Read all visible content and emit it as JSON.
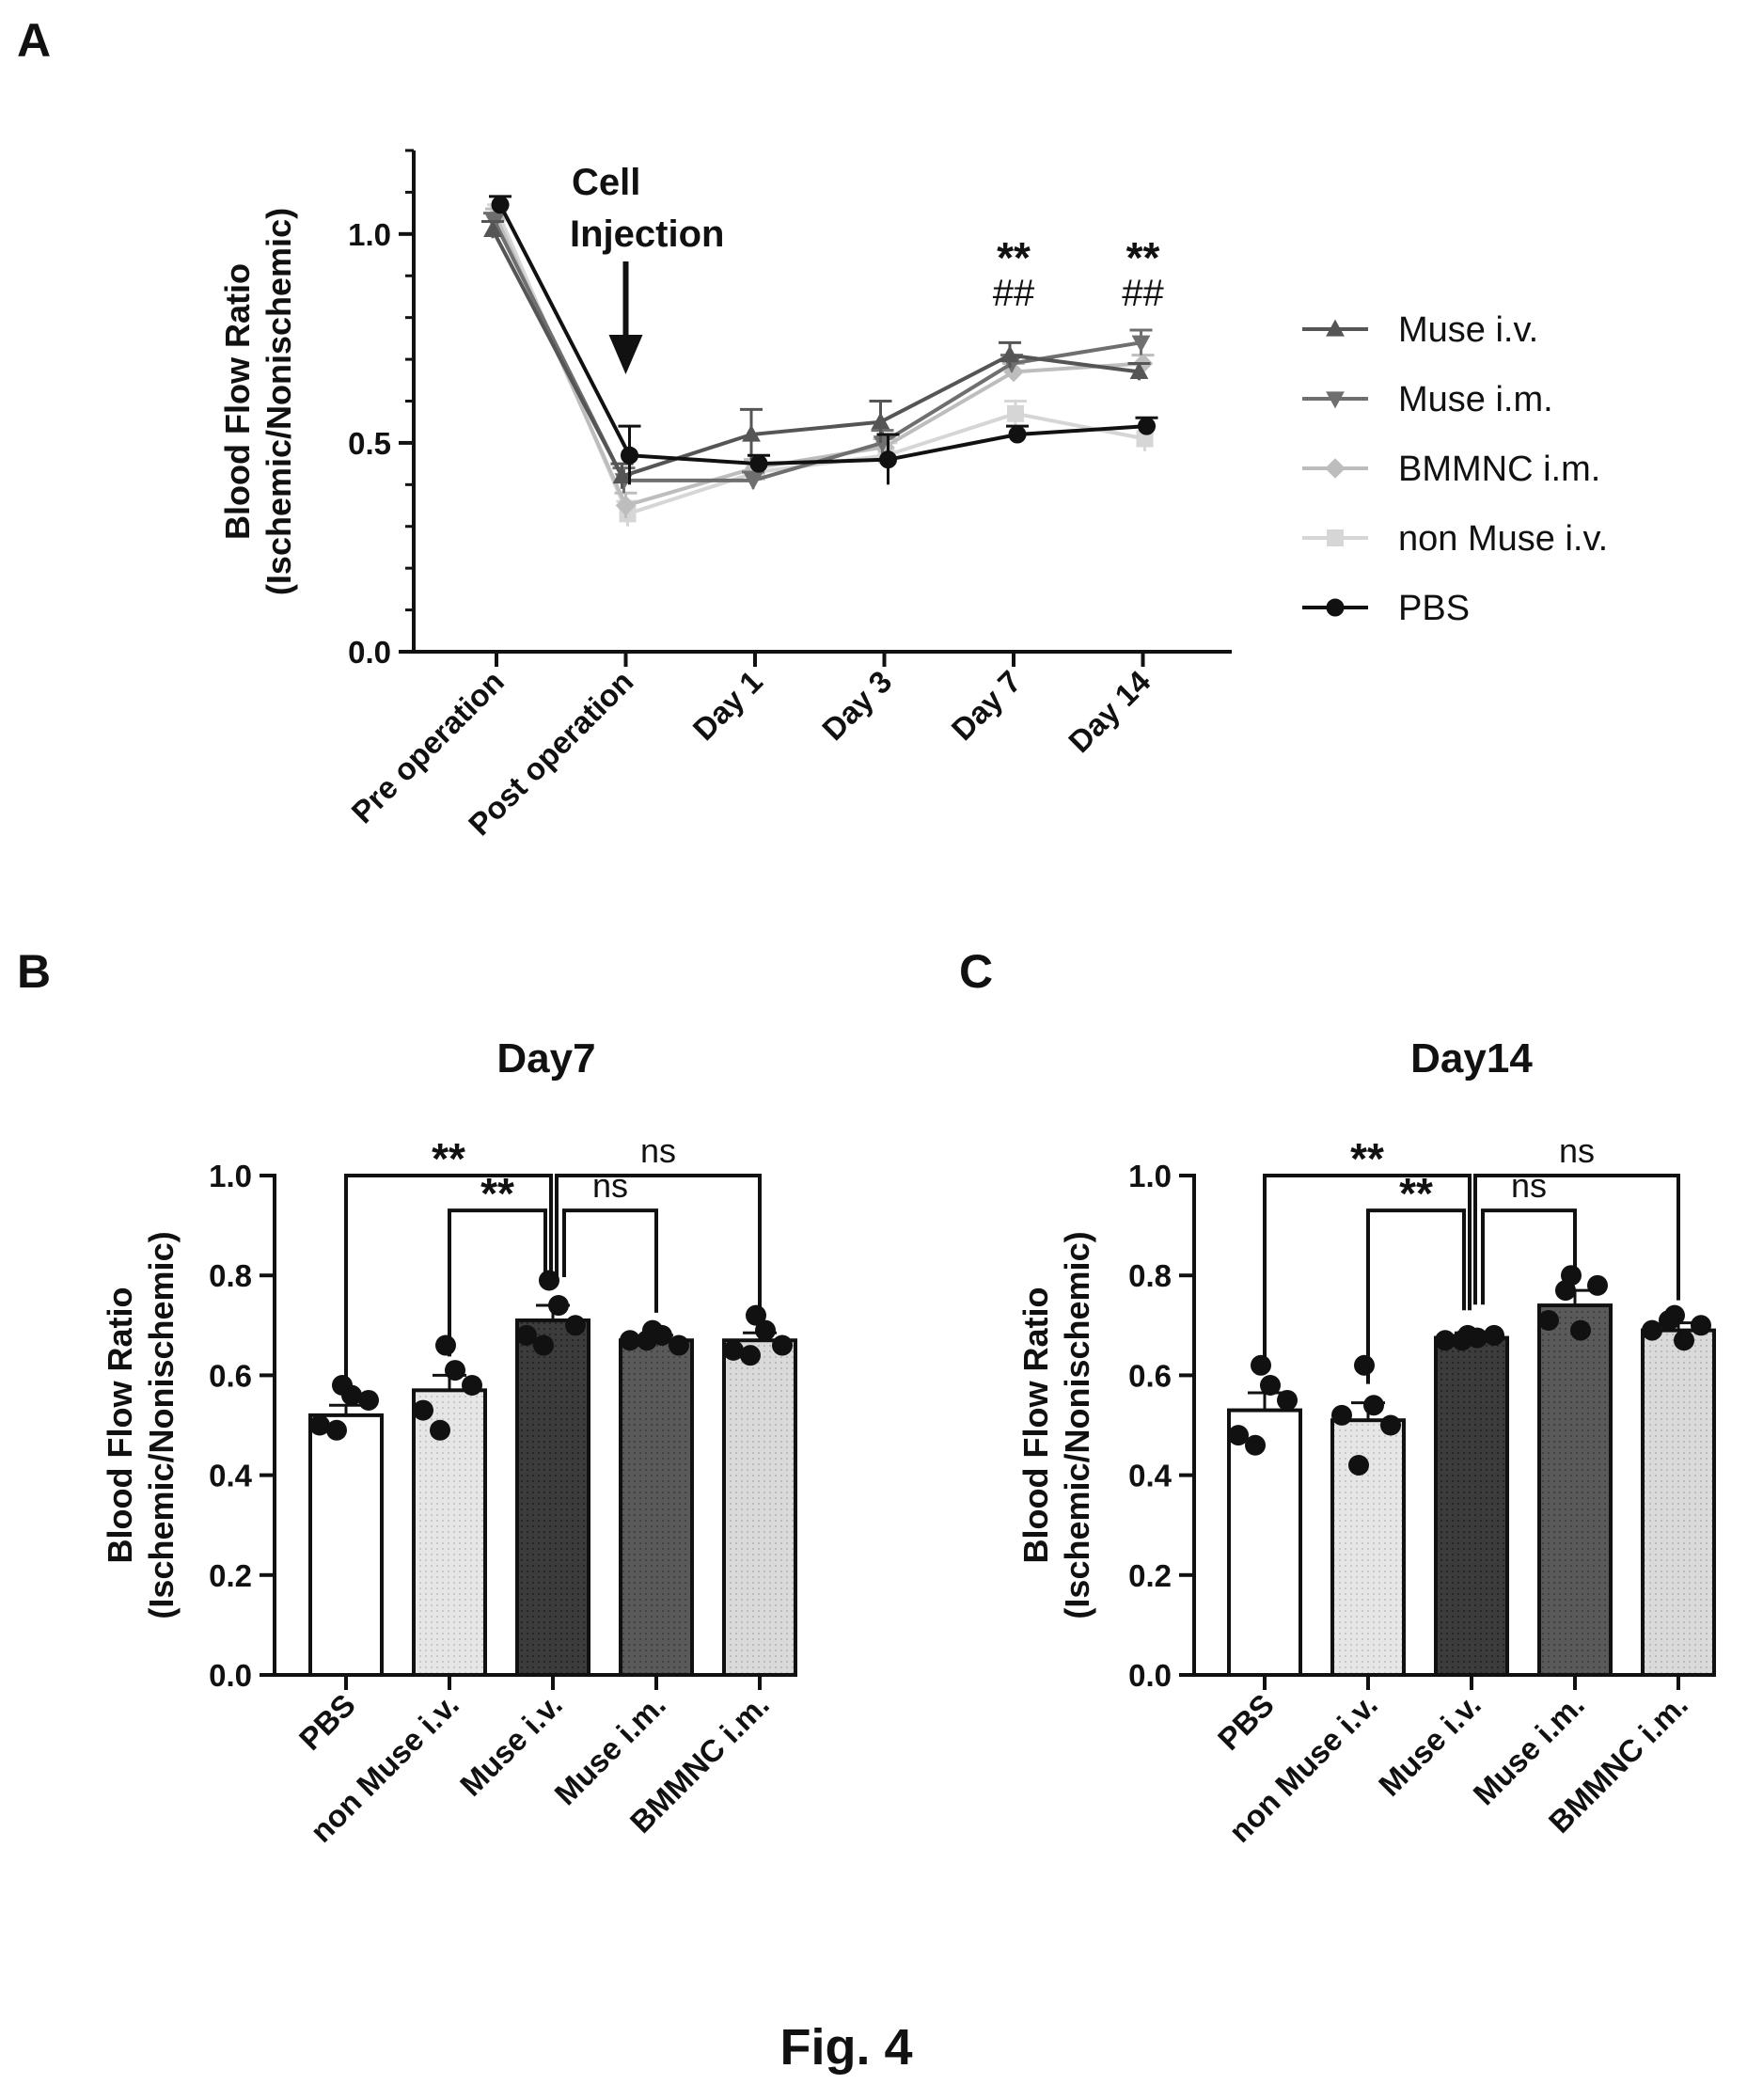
{
  "figure": {
    "caption": "Fig. 4"
  },
  "chart_data": [
    {
      "panel": "A",
      "type": "line",
      "title": "",
      "xlabel": "",
      "ylabel": "Blood Flow Ratio\n(Ischemic/Nonischemic)",
      "ylim": [
        0,
        1.2
      ],
      "yticks": [
        0.0,
        0.5,
        1.0
      ],
      "ytick_labels": [
        "0.0",
        "0.5",
        "1.0"
      ],
      "categories": [
        "Pre operation",
        "Post operation",
        "Day 1",
        "Day 3",
        "Day 7",
        "Day 14"
      ],
      "legend_position": "right",
      "grid": false,
      "annotation": {
        "text_lines": [
          "Cell",
          "Injection"
        ],
        "category": "Post operation"
      },
      "significance": [
        {
          "category": "Day 7",
          "lines": [
            "**",
            "##"
          ]
        },
        {
          "category": "Day 14",
          "lines": [
            "**",
            "##"
          ]
        }
      ],
      "series": [
        {
          "name": "Muse i.v.",
          "marker": "triangle-up",
          "color": "#555555",
          "values": [
            1.01,
            0.42,
            0.52,
            0.55,
            0.71,
            0.67
          ],
          "errors": [
            0.02,
            0.03,
            0.06,
            0.05,
            0.03,
            0.02
          ]
        },
        {
          "name": "Muse i.m.",
          "marker": "triangle-down",
          "color": "#6f6f6f",
          "values": [
            1.03,
            0.41,
            0.41,
            0.5,
            0.69,
            0.74
          ],
          "errors": [
            0.02,
            0.03,
            0.02,
            0.03,
            0.02,
            0.03
          ]
        },
        {
          "name": "BMMNC i.m.",
          "marker": "diamond",
          "color": "#bdbdbd",
          "values": [
            1.04,
            0.35,
            0.44,
            0.49,
            0.67,
            0.69
          ],
          "errors": [
            0.02,
            0.03,
            0.02,
            0.02,
            0.02,
            0.02
          ]
        },
        {
          "name": "non Muse i.v.",
          "marker": "square",
          "color": "#d6d6d6",
          "values": [
            1.05,
            0.33,
            0.43,
            0.47,
            0.57,
            0.51
          ],
          "errors": [
            0.02,
            0.03,
            0.02,
            0.03,
            0.03,
            0.03
          ]
        },
        {
          "name": "PBS",
          "marker": "circle",
          "color": "#111111",
          "values": [
            1.07,
            0.47,
            0.45,
            0.46,
            0.52,
            0.54
          ],
          "errors": [
            0.02,
            0.07,
            0.02,
            0.06,
            0.02,
            0.02
          ]
        }
      ]
    },
    {
      "panel": "B",
      "type": "bar",
      "title": "Day7",
      "xlabel": "",
      "ylabel": "Blood Flow Ratio\n(Ischemic/Nonischemic)",
      "ylim": [
        0,
        1.0
      ],
      "yticks": [
        0.0,
        0.2,
        0.4,
        0.6,
        0.8,
        1.0
      ],
      "ytick_labels": [
        "0.0",
        "0.2",
        "0.4",
        "0.6",
        "0.8",
        "1.0"
      ],
      "categories": [
        "PBS",
        "non Muse i.v.",
        "Muse i.v.",
        "Muse i.m.",
        "BMMNC i.m."
      ],
      "values": [
        0.52,
        0.57,
        0.71,
        0.67,
        0.67
      ],
      "errors": [
        0.02,
        0.03,
        0.03,
        0.01,
        0.015
      ],
      "bar_colors": [
        "#ffffff",
        "#e2e2e2",
        "#3c3c3c",
        "#595959",
        "#d9d9d9"
      ],
      "points": [
        [
          0.58,
          0.55,
          0.5,
          0.56,
          0.49
        ],
        [
          0.66,
          0.58,
          0.53,
          0.61,
          0.49
        ],
        [
          0.79,
          0.7,
          0.68,
          0.74,
          0.66
        ],
        [
          0.69,
          0.66,
          0.67,
          0.68,
          0.67
        ],
        [
          0.72,
          0.66,
          0.65,
          0.69,
          0.64
        ]
      ],
      "comparisons": [
        {
          "from": 0,
          "to": 2,
          "label": "**"
        },
        {
          "from": 1,
          "to": 2,
          "label": "**"
        },
        {
          "from": 2,
          "to": 3,
          "label": "ns"
        },
        {
          "from": 2,
          "to": 4,
          "label": "ns"
        }
      ]
    },
    {
      "panel": "C",
      "type": "bar",
      "title": "Day14",
      "xlabel": "",
      "ylabel": "Blood Flow Ratio\n(Ischemic/Nonischemic)",
      "ylim": [
        0,
        1.0
      ],
      "yticks": [
        0.0,
        0.2,
        0.4,
        0.6,
        0.8,
        1.0
      ],
      "ytick_labels": [
        "0.0",
        "0.2",
        "0.4",
        "0.6",
        "0.8",
        "1.0"
      ],
      "categories": [
        "PBS",
        "non Muse i.v.",
        "Muse i.v.",
        "Muse i.m.",
        "BMMNC i.m."
      ],
      "values": [
        0.53,
        0.51,
        0.675,
        0.74,
        0.69
      ],
      "errors": [
        0.035,
        0.035,
        0.01,
        0.03,
        0.015
      ],
      "bar_colors": [
        "#ffffff",
        "#e2e2e2",
        "#3c3c3c",
        "#595959",
        "#d9d9d9"
      ],
      "points": [
        [
          0.62,
          0.55,
          0.48,
          0.58,
          0.46
        ],
        [
          0.62,
          0.5,
          0.52,
          0.54,
          0.42
        ],
        [
          0.68,
          0.68,
          0.67,
          0.675,
          0.67
        ],
        [
          0.8,
          0.78,
          0.71,
          0.69,
          0.77
        ],
        [
          0.72,
          0.7,
          0.69,
          0.67,
          0.71
        ]
      ],
      "comparisons": [
        {
          "from": 0,
          "to": 2,
          "label": "**"
        },
        {
          "from": 1,
          "to": 2,
          "label": "**"
        },
        {
          "from": 2,
          "to": 3,
          "label": "ns"
        },
        {
          "from": 2,
          "to": 4,
          "label": "ns"
        }
      ]
    }
  ]
}
